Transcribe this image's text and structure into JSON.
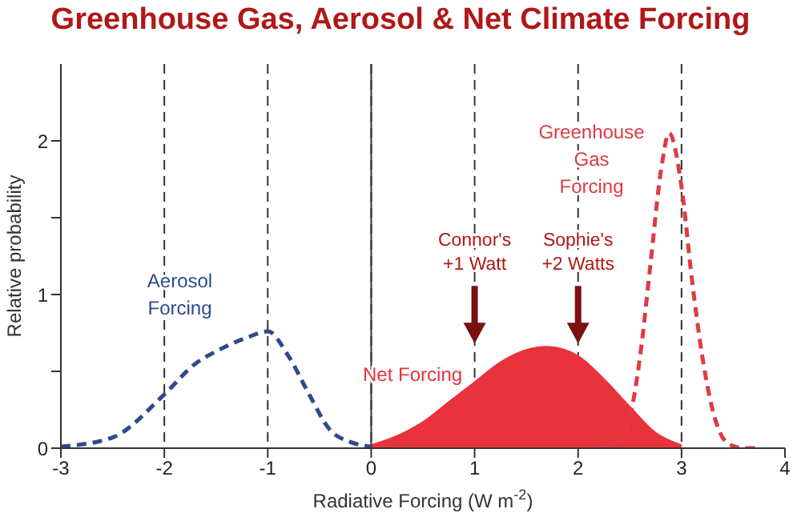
{
  "chart_data": {
    "type": "line",
    "title": "Greenhouse Gas, Aerosol & Net Climate Forcing",
    "xlabel": "Radiative Forcing  (W m$^{-2}$)",
    "ylabel": "Relative probability",
    "xlim": [
      -3,
      4
    ],
    "xticks": [
      -3,
      -2,
      -1,
      0,
      1,
      2,
      3,
      4
    ],
    "ylim": [
      0,
      2.5
    ],
    "yticks": [
      0,
      {
        "value": 0.5,
        "label": null
      },
      1,
      {
        "value": 1.5,
        "label": null
      },
      2
    ],
    "grid": "x",
    "line_style": "dashed",
    "marker": "none",
    "legend": false,
    "ref_lines": [
      {
        "axis": "x",
        "value": 0,
        "color": "#333333",
        "line_style": "solid"
      }
    ],
    "series": [
      {
        "name": "Aerosol Forcing",
        "color": "#2e4a8c",
        "x": [
          -3,
          -2.5,
          -2,
          -1.7,
          -1.5,
          -1.2,
          -1,
          -0.8,
          -0.6,
          -0.4,
          -0.2,
          0
        ],
        "values": [
          0.01,
          0.07,
          0.35,
          0.55,
          0.63,
          0.72,
          0.76,
          0.6,
          0.35,
          0.12,
          0.04,
          0.01
        ]
      },
      {
        "name": "Net Forcing",
        "type": "area",
        "line_style": "solid",
        "color": "#e8323c",
        "x": [
          0,
          0.25,
          0.5,
          0.75,
          1,
          1.25,
          1.5,
          1.7,
          2,
          2.25,
          2.5,
          2.75,
          3
        ],
        "values": [
          0.02,
          0.08,
          0.17,
          0.3,
          0.43,
          0.56,
          0.64,
          0.66,
          0.6,
          0.45,
          0.27,
          0.1,
          0.02
        ]
      },
      {
        "name": "Greenhouse Gas Forcing",
        "color": "#e03a44",
        "x": [
          2.2,
          2.4,
          2.5,
          2.6,
          2.7,
          2.8,
          2.88,
          3,
          3.1,
          3.2,
          3.3,
          3.45,
          3.6,
          3.75
        ],
        "values": [
          0,
          0.05,
          0.2,
          0.6,
          1.2,
          1.8,
          2.05,
          1.7,
          1.1,
          0.6,
          0.25,
          0.03,
          0,
          0
        ]
      }
    ],
    "annotations": [
      "Connor's +1 Watt",
      "Sophie's +2 Watts"
    ]
  }
}
